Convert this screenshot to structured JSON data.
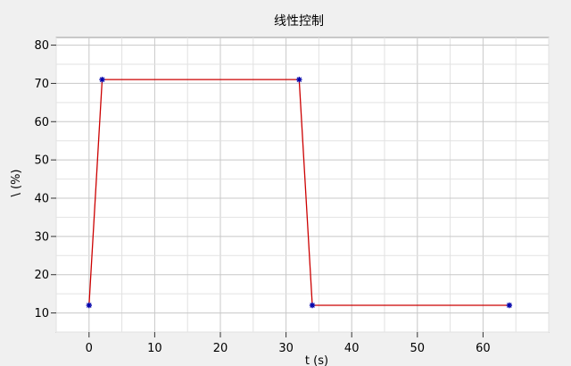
{
  "chart_data": {
    "type": "line",
    "title": "线性控制",
    "xlabel": "t (s)",
    "ylabel": "\\ (%)",
    "xlim": [
      -5,
      70
    ],
    "ylim": [
      5,
      82
    ],
    "x_ticks": [
      0,
      10,
      20,
      30,
      40,
      50,
      60
    ],
    "y_ticks": [
      10,
      20,
      30,
      40,
      50,
      60,
      70,
      80
    ],
    "grid": true,
    "series": [
      {
        "color": "#cc0000",
        "marker_color": "#0000aa",
        "x": [
          0,
          2,
          32,
          34,
          64
        ],
        "y": [
          12,
          71,
          71,
          12,
          12
        ]
      }
    ]
  }
}
